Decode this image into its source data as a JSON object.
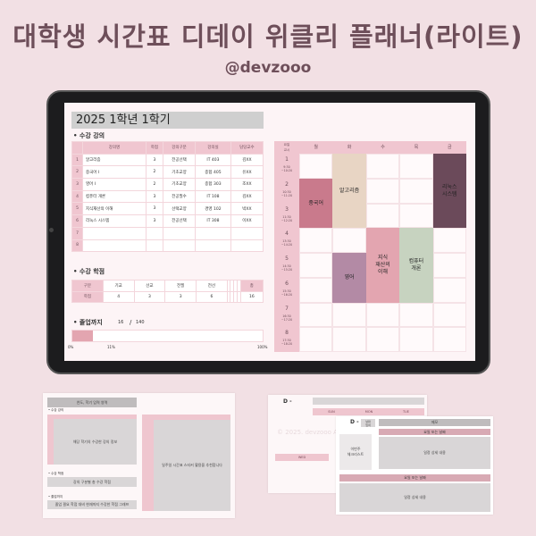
{
  "header": {
    "title": "대학생 시간표 디데이 위클리 플래너(라이트)",
    "handle": "@devzooo"
  },
  "planner": {
    "semester": "2025 1학년 1학기",
    "courses_heading": "• 수강 강의",
    "course_columns": [
      "",
      "강의명",
      "학점",
      "강의구분",
      "강의실",
      "담당교수"
    ],
    "courses": [
      [
        "1",
        "알고리즘",
        "3",
        "전공선택",
        "IT 403",
        "김XX"
      ],
      [
        "2",
        "중국어 I",
        "2",
        "기초교양",
        "종합 405",
        "유XX"
      ],
      [
        "3",
        "영어 I",
        "2",
        "기초교양",
        "종합 303",
        "조XX"
      ],
      [
        "4",
        "컴퓨터 개론",
        "3",
        "전공필수",
        "IT 108",
        "김XX"
      ],
      [
        "5",
        "지식재산의 이해",
        "3",
        "선택교양",
        "경영 102",
        "박XX"
      ],
      [
        "6",
        "리눅스 시스템",
        "3",
        "전공선택",
        "IT 308",
        "이XX"
      ],
      [
        "7",
        "",
        "",
        "",
        "",
        ""
      ],
      [
        "8",
        "",
        "",
        "",
        "",
        ""
      ]
    ],
    "credits_heading": "• 수강 학점",
    "credits_rows": [
      [
        "구분",
        "기교",
        "선교",
        "전필",
        "전선",
        "",
        "",
        "",
        "",
        "총"
      ],
      [
        "학점",
        "4",
        "3",
        "3",
        "6",
        "",
        "",
        "",
        "",
        "16"
      ]
    ],
    "graduation": {
      "heading": "• 졸업까지",
      "earned": "16",
      "sep": "/",
      "required": "140",
      "progress_percent": 11,
      "label_start": "0%",
      "label_mid": "11%",
      "label_end": "100%"
    },
    "timetable": {
      "corner_top": "요일",
      "corner_bottom": "교시",
      "days": [
        "월",
        "화",
        "수",
        "목",
        "금"
      ],
      "periods": [
        {
          "n": "1",
          "time": "9:30\n~10:20"
        },
        {
          "n": "2",
          "time": "10:30\n~11:20"
        },
        {
          "n": "3",
          "time": "11:30\n~12:20"
        },
        {
          "n": "4",
          "time": "13:30\n~14:20"
        },
        {
          "n": "5",
          "time": "14:30\n~15:20"
        },
        {
          "n": "6",
          "time": "15:30\n~16:20"
        },
        {
          "n": "7",
          "time": "16:30\n~17:20"
        },
        {
          "n": "8",
          "time": "17:30\n~18:20"
        }
      ],
      "blocks": [
        {
          "name": "중국어",
          "day": 0,
          "start": 2,
          "end": 3,
          "color": "#c97a8c"
        },
        {
          "name": "알고리즘",
          "day": 1,
          "start": 1,
          "end": 3,
          "color": "#e8d5c4"
        },
        {
          "name": "리눅스\n시스템",
          "day": 4,
          "start": 1,
          "end": 3,
          "color": "#6b4a5a"
        },
        {
          "name": "지식\n재산의\n이해",
          "day": 2,
          "start": 4,
          "end": 6,
          "color": "#e3a5b0"
        },
        {
          "name": "컴퓨터\n개론",
          "day": 3,
          "start": 4,
          "end": 6,
          "color": "#c7d3c0"
        },
        {
          "name": "영어",
          "day": 1,
          "start": 5,
          "end": 6,
          "color": "#b38aa5"
        }
      ]
    }
  },
  "preview_left": {
    "title": "연도, 학기 입력 영역",
    "courses_heading": "• 수강 강의",
    "courses_hint": "해당 학기의 수강한 강의 정보",
    "credits_heading": "• 수강 학점",
    "credits_hint": "강의 구분별 총 수강 학점",
    "grad_heading": "• 졸업까지",
    "grad_hint": "졸업 필요 학점 대비 현재까지 수강한 학점 그래프",
    "timetable_hint": "일주일 시간표 스티커 활용을 추천합니다"
  },
  "preview_right": {
    "dday": "D -",
    "days_top": [
      "SUN",
      "MON",
      "TUE"
    ],
    "days_mid": [
      "WED",
      "THU"
    ],
    "watermark": "© 2025. devzooo All rights reserved.",
    "front_dday": "D -",
    "front_dday_box": "날짜\n입력",
    "memo": "메모",
    "date_label": "요일 또는 날짜",
    "detail": "일정 상세 내용",
    "checklist": "이번주\n체크리스트"
  },
  "colors": {
    "accent": "#f0c6d0",
    "title": "#6e4f5a",
    "background": "#f2e0e4"
  }
}
